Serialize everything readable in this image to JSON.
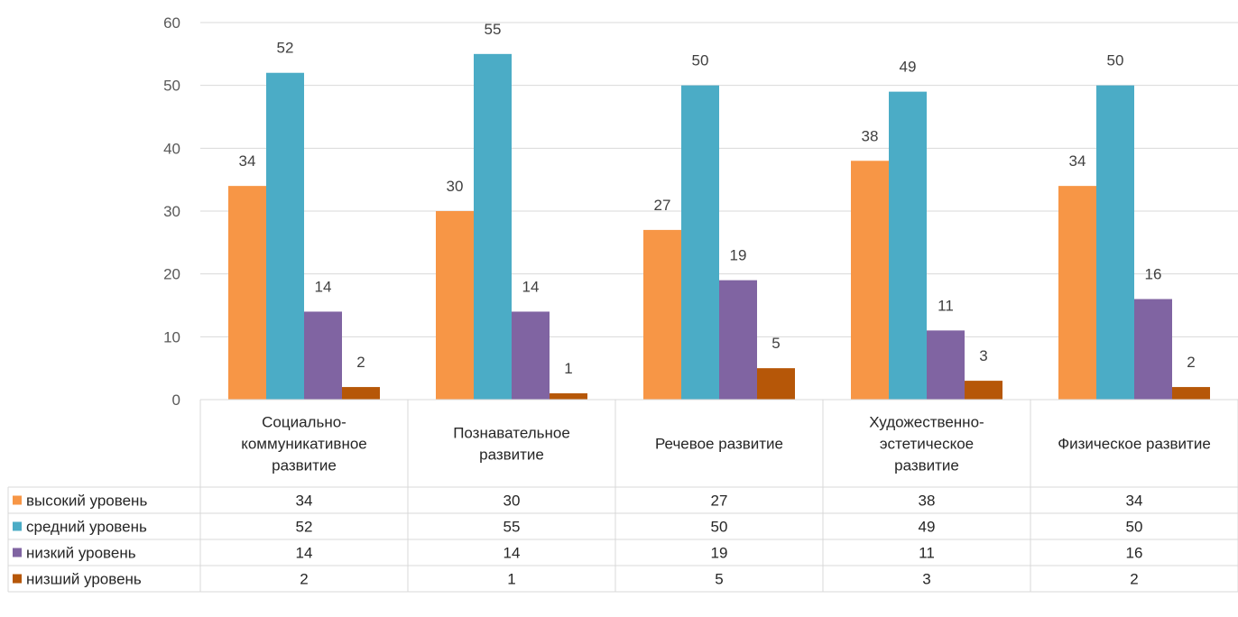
{
  "chart_data": {
    "type": "bar",
    "categories": [
      [
        "Социально-",
        "коммуникативное",
        "развитие"
      ],
      [
        "Познавательное",
        "развитие"
      ],
      [
        "Речевое развитие"
      ],
      [
        "Художественно-",
        "эстетическое",
        "развитие"
      ],
      [
        "Физическое развитие"
      ]
    ],
    "series": [
      {
        "name": "высокий уровень",
        "color": "#F79646",
        "values": [
          34,
          30,
          27,
          38,
          34
        ]
      },
      {
        "name": "средний уровень",
        "color": "#4BACC6",
        "values": [
          52,
          55,
          50,
          49,
          50
        ]
      },
      {
        "name": "низкий уровень",
        "color": "#8064A2",
        "values": [
          14,
          14,
          19,
          11,
          16
        ]
      },
      {
        "name": "низший уровень",
        "color": "#B65708",
        "values": [
          2,
          1,
          5,
          3,
          2
        ]
      }
    ],
    "ylim": [
      0,
      60
    ],
    "yticks": [
      0,
      10,
      20,
      30,
      40,
      50,
      60
    ],
    "grid": true,
    "legend": "data-table",
    "data_labels": true
  }
}
